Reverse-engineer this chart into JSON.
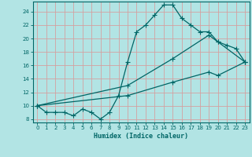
{
  "xlabel": "Humidex (Indice chaleur)",
  "background_color": "#b2e4e4",
  "grid_color": "#d4a0a0",
  "line_color": "#006666",
  "xlim": [
    -0.5,
    23.5
  ],
  "ylim": [
    7.5,
    25.5
  ],
  "xticks": [
    0,
    1,
    2,
    3,
    4,
    5,
    6,
    7,
    8,
    9,
    10,
    11,
    12,
    13,
    14,
    15,
    16,
    17,
    18,
    19,
    20,
    21,
    22,
    23
  ],
  "yticks": [
    8,
    10,
    12,
    14,
    16,
    18,
    20,
    22,
    24
  ],
  "line1_x": [
    0,
    1,
    2,
    3,
    4,
    5,
    6,
    7,
    8,
    9,
    10,
    11,
    12,
    13,
    14,
    15,
    16,
    17,
    18,
    19,
    20,
    21,
    22,
    23
  ],
  "line1_y": [
    10,
    9,
    9,
    9,
    8.5,
    9.5,
    9,
    8,
    9,
    11.5,
    16.5,
    21,
    22,
    23.5,
    25,
    25,
    23,
    22,
    21,
    21,
    19.5,
    19,
    18.5,
    16.5
  ],
  "line2_x": [
    0,
    10,
    15,
    19,
    20,
    23
  ],
  "line2_y": [
    10,
    13,
    17,
    20.5,
    19.5,
    16.5
  ],
  "line3_x": [
    0,
    10,
    15,
    19,
    20,
    23
  ],
  "line3_y": [
    10,
    11.5,
    13.5,
    15,
    14.5,
    16.5
  ]
}
